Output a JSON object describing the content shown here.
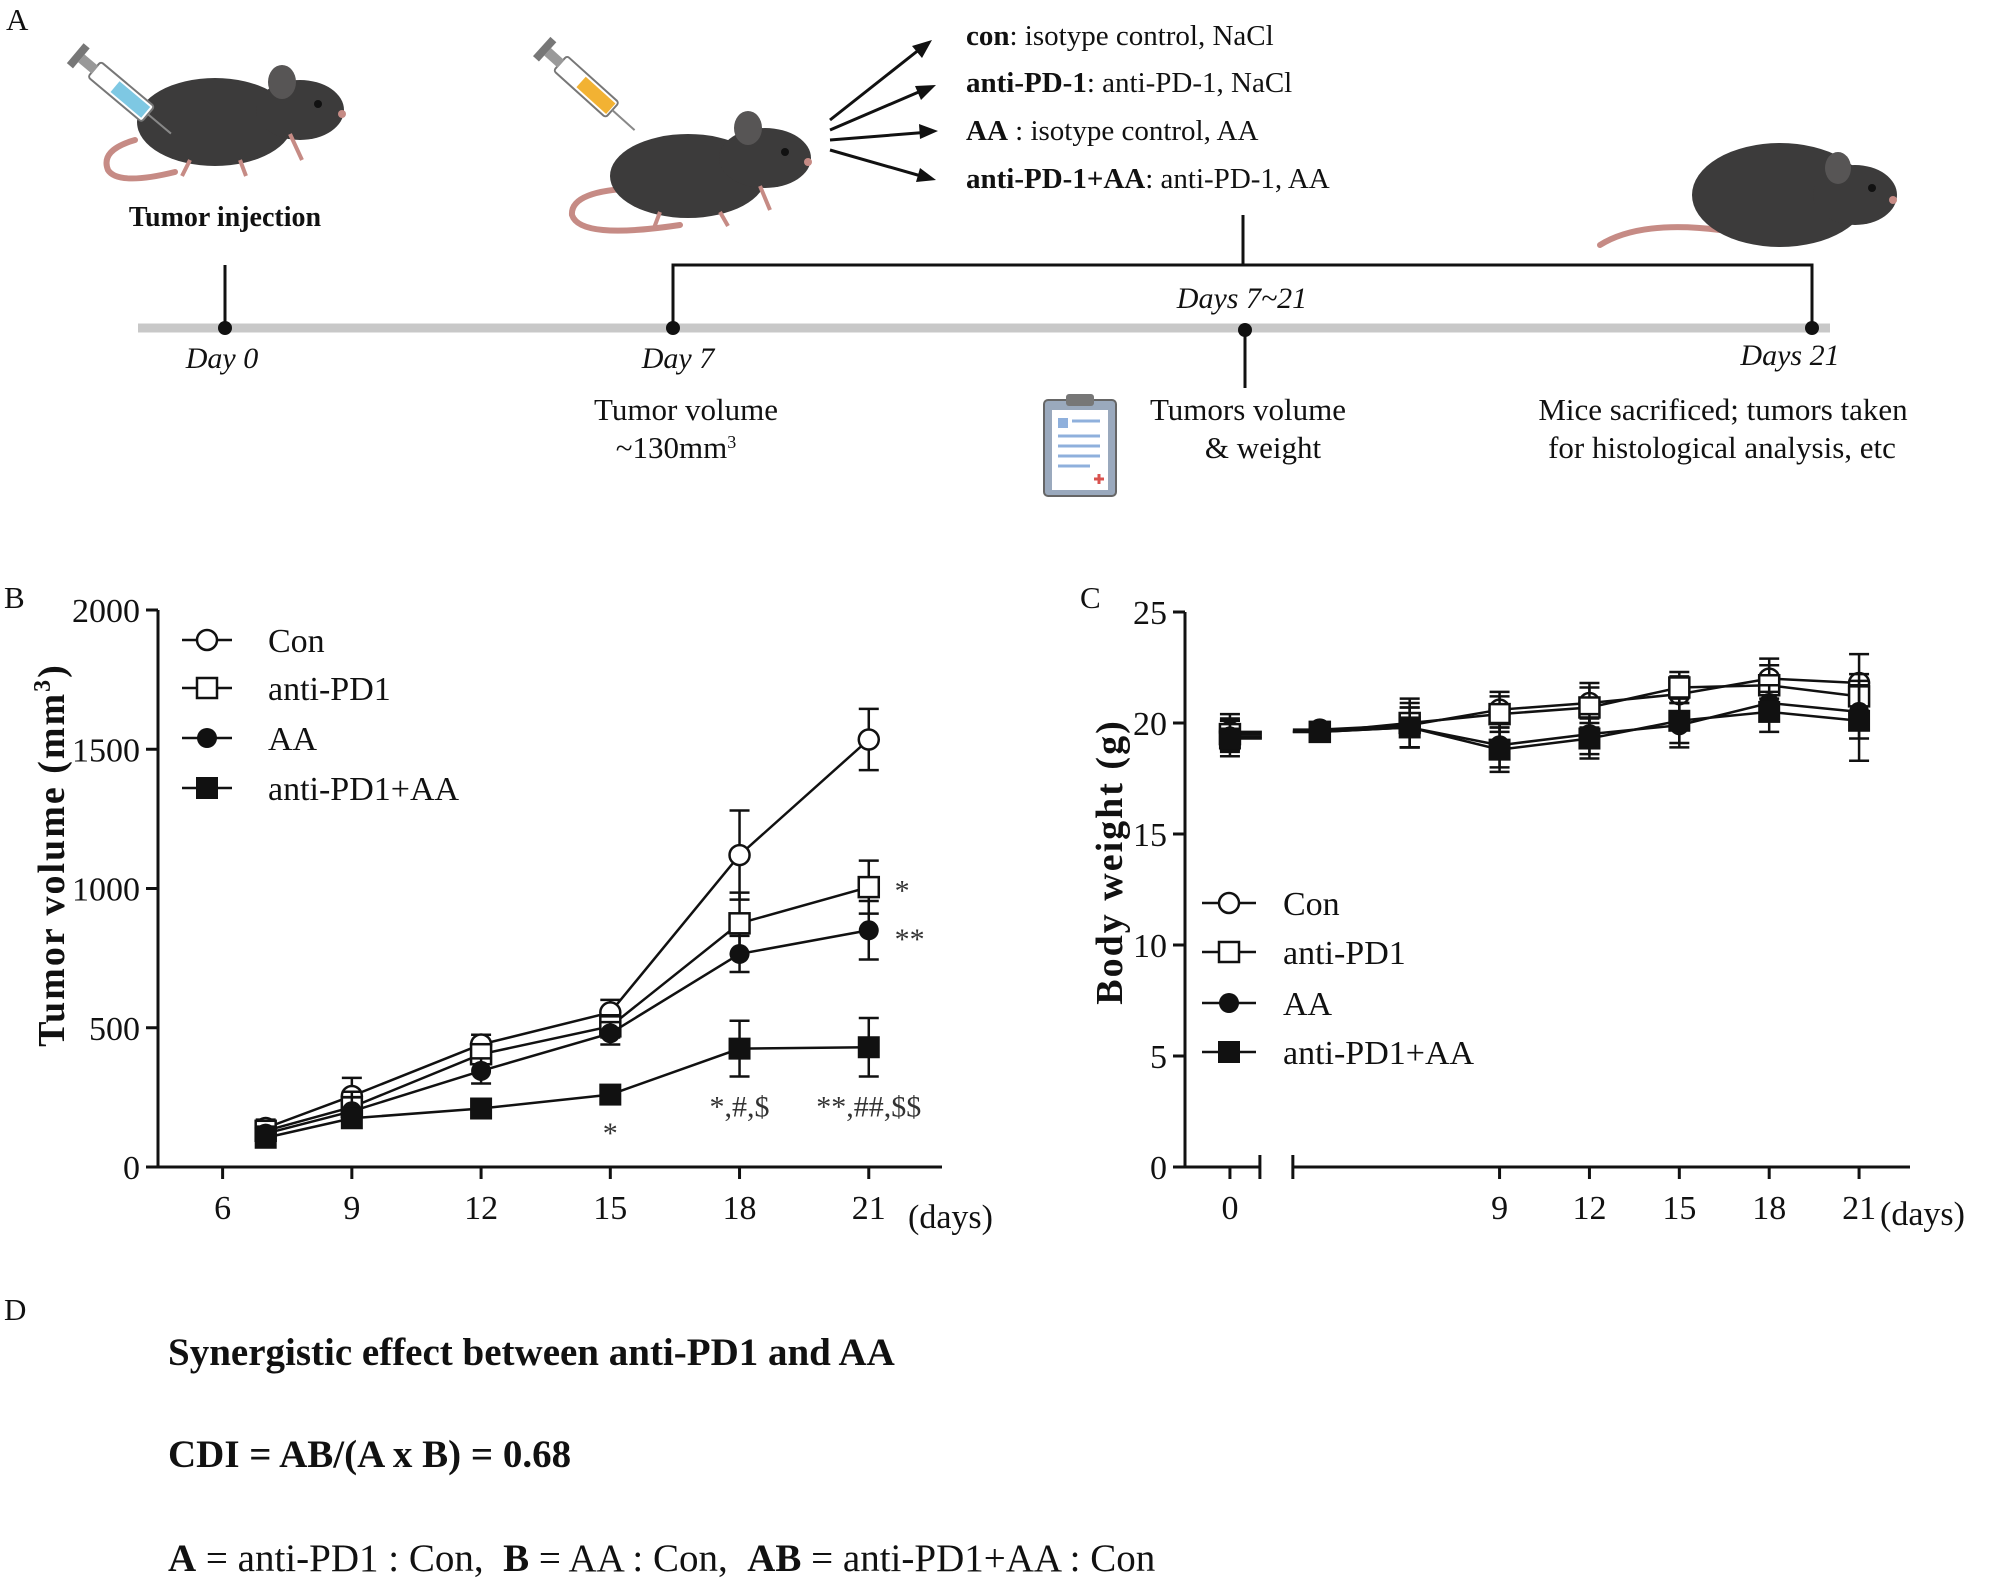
{
  "panels": {
    "a": "A",
    "b": "B",
    "c": "C",
    "d": "D"
  },
  "panel_a": {
    "tumor_injection": "Tumor injection",
    "treatments": [
      {
        "bold": "con",
        "rest": ": isotype control, NaCl"
      },
      {
        "bold": "anti-PD-1",
        "rest": ": anti-PD-1, NaCl"
      },
      {
        "bold": "AA",
        "rest": " : isotype control, AA"
      },
      {
        "bold": "anti-PD-1+AA",
        "rest": ": anti-PD-1, AA"
      }
    ],
    "timeline": {
      "day0": "Day 0",
      "day7": "Day 7",
      "days_range": "Days 7~21",
      "days21": "Days 21",
      "tumor_volume_line1": "Tumor volume",
      "tumor_volume_line2": "~130mm",
      "tumor_volume_sup": "3",
      "tumors_line1": "Tumors volume",
      "tumors_line2": "& weight",
      "sacrifice_line1": "Mice sacrificed; tumors taken",
      "sacrifice_line2": "for histological analysis, etc"
    },
    "colors": {
      "mouse": "#3c3b3b",
      "mouse_light": "#575555",
      "tail": "#c68b85",
      "timeline": "#c8c8c8",
      "syringe_blue": "#7ec8e3",
      "syringe_yellow": "#f2b233",
      "clipboard": "#9aa9bd"
    }
  },
  "chart_data": [
    {
      "id": "B",
      "type": "line",
      "ylabel": "Tumor volume (mm",
      "ylabel_sup": "3",
      "ylabel_close": ")",
      "xunit": "(days)",
      "xlim": [
        4.5,
        22.7
      ],
      "ylim": [
        0,
        2000
      ],
      "xticks": [
        6,
        9,
        12,
        15,
        18,
        21
      ],
      "yticks": [
        0,
        500,
        1000,
        1500,
        2000
      ],
      "legend": [
        "Con",
        "anti-PD1",
        "AA",
        "anti-PD1+AA"
      ],
      "series": [
        {
          "name": "Con",
          "marker": "circle-open",
          "x": [
            7,
            9,
            12,
            15,
            18,
            21
          ],
          "y": [
            140,
            255,
            440,
            555,
            1120,
            1535
          ],
          "err": [
            30,
            65,
            35,
            45,
            160,
            110
          ]
        },
        {
          "name": "anti-PD1",
          "marker": "square-open",
          "x": [
            7,
            9,
            12,
            15,
            18,
            21
          ],
          "y": [
            130,
            215,
            405,
            505,
            875,
            1005
          ],
          "err": [
            25,
            55,
            30,
            40,
            110,
            95
          ]
        },
        {
          "name": "AA",
          "marker": "circle-filled",
          "x": [
            7,
            9,
            12,
            15,
            18,
            21
          ],
          "y": [
            120,
            200,
            345,
            480,
            765,
            850
          ],
          "err": [
            25,
            50,
            45,
            40,
            65,
            105
          ]
        },
        {
          "name": "anti-PD1+AA",
          "marker": "square-filled",
          "x": [
            7,
            9,
            12,
            15,
            18,
            21
          ],
          "y": [
            105,
            175,
            210,
            260,
            425,
            430
          ],
          "err": [
            20,
            30,
            25,
            30,
            100,
            105
          ]
        }
      ],
      "annotations": [
        {
          "text": "*",
          "x": 21.6,
          "y": 1000
        },
        {
          "text": "**",
          "x": 21.6,
          "y": 825
        },
        {
          "text": "*",
          "x": 15,
          "y": 130
        },
        {
          "text": "*,#,$",
          "x": 18,
          "y": 225
        },
        {
          "text": "**,##,$$",
          "x": 21,
          "y": 225
        }
      ]
    },
    {
      "id": "C",
      "type": "line",
      "ylabel": "Body weight (g)",
      "xunit": "(days)",
      "xlim": [
        -1.5,
        22.7
      ],
      "ylim": [
        0,
        25
      ],
      "xticks": [
        0,
        9,
        12,
        15,
        18,
        21
      ],
      "yticks": [
        0,
        5,
        10,
        15,
        20,
        25
      ],
      "axis_break": "between 0 and 3",
      "legend": [
        "Con",
        "anti-PD1",
        "AA",
        "anti-PD1+AA"
      ],
      "series": [
        {
          "name": "Con",
          "marker": "circle-open",
          "x": [
            0,
            3,
            6,
            9,
            12,
            15,
            18,
            21
          ],
          "y": [
            19.6,
            19.7,
            19.9,
            20.6,
            20.9,
            21.3,
            22.0,
            21.8
          ],
          "err": [
            0.8,
            null,
            1.0,
            0.8,
            0.9,
            0.8,
            0.9,
            1.3
          ]
        },
        {
          "name": "anti-PD1",
          "marker": "square-open",
          "x": [
            0,
            3,
            6,
            9,
            12,
            15,
            18,
            21
          ],
          "y": [
            19.5,
            19.6,
            20.0,
            20.4,
            20.7,
            21.6,
            21.7,
            21.2
          ],
          "err": [
            0.7,
            null,
            1.1,
            0.8,
            0.9,
            0.7,
            0.9,
            1.0
          ]
        },
        {
          "name": "AA",
          "marker": "circle-filled",
          "x": [
            0,
            3,
            6,
            9,
            12,
            15,
            18,
            21
          ],
          "y": [
            19.4,
            19.6,
            19.8,
            19.0,
            19.5,
            19.9,
            20.9,
            20.5
          ],
          "err": [
            0.7,
            null,
            0.9,
            1.0,
            0.9,
            1.0,
            0.8,
            1.2
          ]
        },
        {
          "name": "anti-PD1+AA",
          "marker": "square-filled",
          "x": [
            0,
            3,
            6,
            9,
            12,
            15,
            18,
            21
          ],
          "y": [
            19.3,
            19.6,
            19.8,
            18.8,
            19.3,
            20.1,
            20.5,
            20.1
          ],
          "err": [
            0.8,
            null,
            0.9,
            1.0,
            0.9,
            1.0,
            0.9,
            1.8
          ]
        }
      ]
    }
  ],
  "panel_d": {
    "title": "Synergistic effect between anti-PD1 and AA",
    "cdi": "CDI = AB/(A x B) = 0.68",
    "definitions": [
      {
        "key": "A",
        "value": " = anti-PD1 : Con,  "
      },
      {
        "key": "B",
        "value": " = AA : Con,  "
      },
      {
        "key": "AB",
        "value": " = anti-PD1+AA : Con"
      }
    ]
  }
}
